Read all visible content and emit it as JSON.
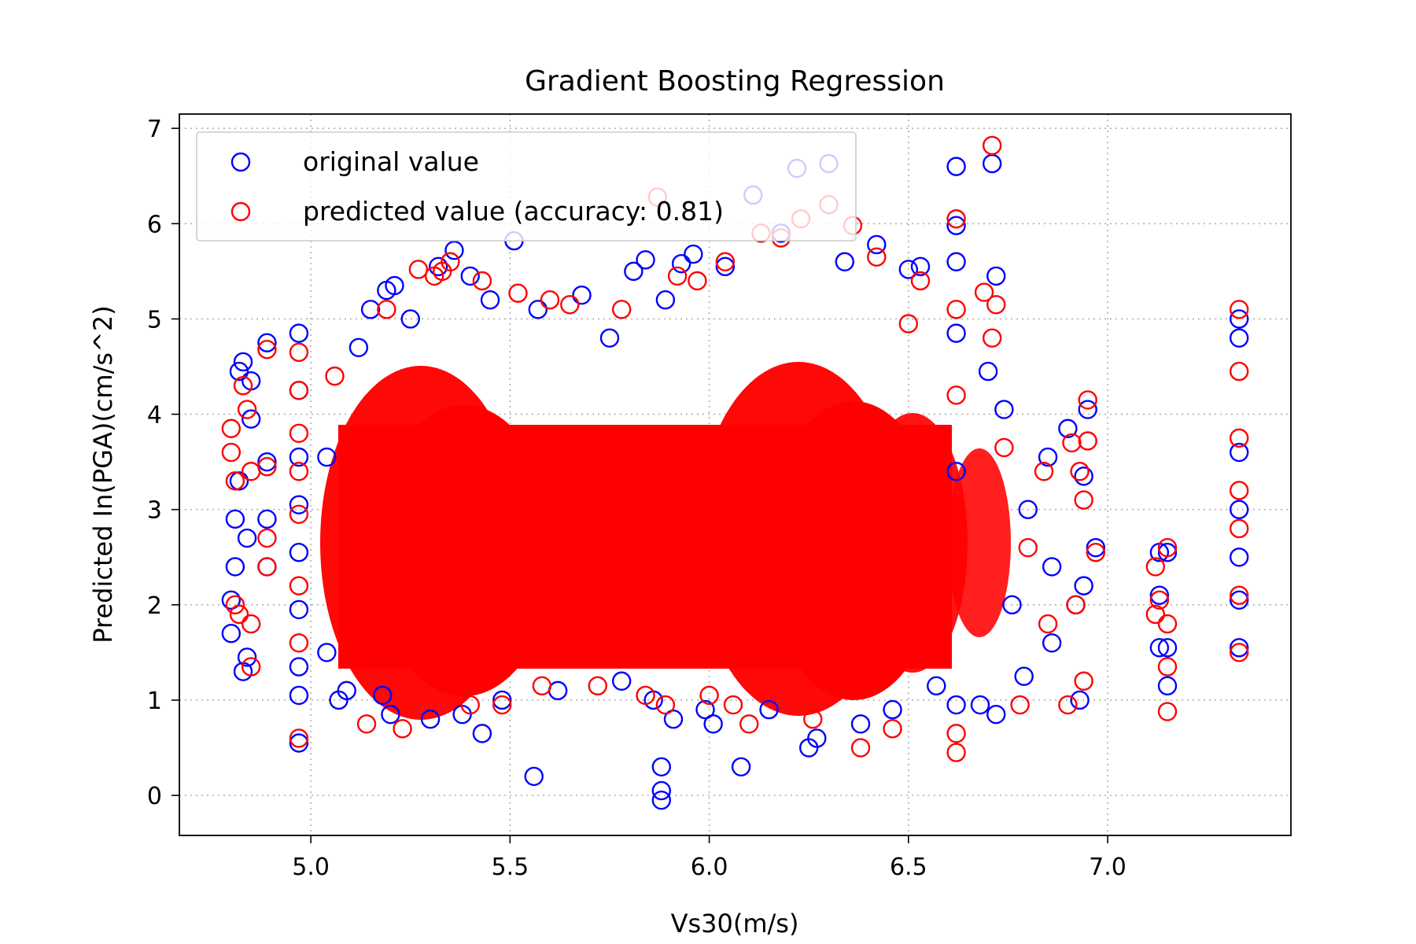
{
  "chart_data": {
    "type": "scatter",
    "title": "Gradient Boosting Regression",
    "xlabel": "Vs30(m/s)",
    "ylabel": "Predicted In(PGA)(cm/s^2)",
    "xlim": [
      4.67,
      7.46
    ],
    "ylim": [
      -0.42,
      7.15
    ],
    "x_ticks": [
      5.0,
      5.5,
      6.0,
      6.5,
      7.0
    ],
    "x_tick_labels": [
      "5.0",
      "5.5",
      "6.0",
      "6.5",
      "7.0"
    ],
    "y_ticks": [
      0,
      1,
      2,
      3,
      4,
      5,
      6,
      7
    ],
    "y_tick_labels": [
      "0",
      "1",
      "2",
      "3",
      "4",
      "5",
      "6",
      "7"
    ],
    "grid": true,
    "legend_position": "top-left",
    "series": [
      {
        "name": "original value",
        "color": "#0000ff",
        "marker": "open-circle",
        "points": [
          [
            4.8,
            1.7
          ],
          [
            4.8,
            2.05
          ],
          [
            4.81,
            2.4
          ],
          [
            4.81,
            2.9
          ],
          [
            4.82,
            3.3
          ],
          [
            4.82,
            4.45
          ],
          [
            4.83,
            4.55
          ],
          [
            4.83,
            1.3
          ],
          [
            4.84,
            1.45
          ],
          [
            4.84,
            2.7
          ],
          [
            4.85,
            3.95
          ],
          [
            4.85,
            4.35
          ],
          [
            4.89,
            4.75
          ],
          [
            4.89,
            3.5
          ],
          [
            4.89,
            2.9
          ],
          [
            4.89,
            2.4
          ],
          [
            4.97,
            0.55
          ],
          [
            4.97,
            1.05
          ],
          [
            4.97,
            1.35
          ],
          [
            4.97,
            1.95
          ],
          [
            4.97,
            2.55
          ],
          [
            4.97,
            3.05
          ],
          [
            4.97,
            3.55
          ],
          [
            4.97,
            4.25
          ],
          [
            4.97,
            4.85
          ],
          [
            5.04,
            1.5
          ],
          [
            5.04,
            3.55
          ],
          [
            5.07,
            1.0
          ],
          [
            5.09,
            1.1
          ],
          [
            5.12,
            4.7
          ],
          [
            5.15,
            5.1
          ],
          [
            5.18,
            1.05
          ],
          [
            5.19,
            5.3
          ],
          [
            5.2,
            0.85
          ],
          [
            5.21,
            5.35
          ],
          [
            5.25,
            5.0
          ],
          [
            5.3,
            0.8
          ],
          [
            5.32,
            5.55
          ],
          [
            5.36,
            5.72
          ],
          [
            5.38,
            0.85
          ],
          [
            5.4,
            5.45
          ],
          [
            5.43,
            0.65
          ],
          [
            5.45,
            5.2
          ],
          [
            5.48,
            1.0
          ],
          [
            5.51,
            5.82
          ],
          [
            5.56,
            0.2
          ],
          [
            5.57,
            5.1
          ],
          [
            5.62,
            1.1
          ],
          [
            5.68,
            5.25
          ],
          [
            5.75,
            4.8
          ],
          [
            5.78,
            1.2
          ],
          [
            5.81,
            5.5
          ],
          [
            5.84,
            5.62
          ],
          [
            5.86,
            1.0
          ],
          [
            5.88,
            0.05
          ],
          [
            5.88,
            0.3
          ],
          [
            5.88,
            -0.05
          ],
          [
            5.89,
            5.2
          ],
          [
            5.91,
            0.8
          ],
          [
            5.93,
            5.58
          ],
          [
            5.96,
            5.68
          ],
          [
            5.99,
            0.9
          ],
          [
            6.01,
            0.75
          ],
          [
            6.04,
            5.55
          ],
          [
            6.08,
            0.3
          ],
          [
            6.11,
            6.3
          ],
          [
            6.15,
            0.9
          ],
          [
            6.18,
            5.9
          ],
          [
            6.22,
            6.58
          ],
          [
            6.25,
            0.5
          ],
          [
            6.27,
            0.6
          ],
          [
            6.3,
            6.63
          ],
          [
            6.34,
            5.6
          ],
          [
            6.38,
            0.75
          ],
          [
            6.42,
            5.78
          ],
          [
            6.46,
            0.9
          ],
          [
            6.5,
            5.52
          ],
          [
            6.53,
            5.55
          ],
          [
            6.57,
            1.15
          ],
          [
            6.62,
            5.6
          ],
          [
            6.62,
            6.6
          ],
          [
            6.62,
            5.98
          ],
          [
            6.62,
            0.95
          ],
          [
            6.62,
            3.4
          ],
          [
            6.62,
            4.85
          ],
          [
            6.68,
            0.95
          ],
          [
            6.7,
            4.45
          ],
          [
            6.71,
            6.63
          ],
          [
            6.72,
            0.85
          ],
          [
            6.72,
            5.45
          ],
          [
            6.74,
            4.05
          ],
          [
            6.76,
            2.0
          ],
          [
            6.79,
            1.25
          ],
          [
            6.8,
            3.0
          ],
          [
            6.85,
            3.55
          ],
          [
            6.86,
            1.6
          ],
          [
            6.86,
            2.4
          ],
          [
            6.9,
            3.85
          ],
          [
            6.92,
            2.0
          ],
          [
            6.93,
            1.0
          ],
          [
            6.94,
            2.2
          ],
          [
            6.94,
            3.35
          ],
          [
            6.95,
            4.05
          ],
          [
            6.97,
            2.6
          ],
          [
            7.13,
            1.55
          ],
          [
            7.13,
            2.1
          ],
          [
            7.13,
            2.55
          ],
          [
            7.15,
            1.15
          ],
          [
            7.15,
            1.55
          ],
          [
            7.15,
            2.55
          ],
          [
            7.33,
            1.55
          ],
          [
            7.33,
            2.05
          ],
          [
            7.33,
            2.5
          ],
          [
            7.33,
            3.0
          ],
          [
            7.33,
            3.6
          ],
          [
            7.33,
            4.8
          ],
          [
            7.33,
            5.0
          ]
        ]
      },
      {
        "name": "predicted value (accuracy: 0.81)",
        "color": "#ff0000",
        "marker": "open-circle",
        "points": [
          [
            4.8,
            3.85
          ],
          [
            4.8,
            3.6
          ],
          [
            4.81,
            3.3
          ],
          [
            4.81,
            2.0
          ],
          [
            4.82,
            1.9
          ],
          [
            4.83,
            4.3
          ],
          [
            4.84,
            4.05
          ],
          [
            4.85,
            3.4
          ],
          [
            4.85,
            1.8
          ],
          [
            4.85,
            1.35
          ],
          [
            4.89,
            4.68
          ],
          [
            4.89,
            3.45
          ],
          [
            4.89,
            2.7
          ],
          [
            4.89,
            2.4
          ],
          [
            4.97,
            0.6
          ],
          [
            4.97,
            1.6
          ],
          [
            4.97,
            2.2
          ],
          [
            4.97,
            2.95
          ],
          [
            4.97,
            3.4
          ],
          [
            4.97,
            3.8
          ],
          [
            4.97,
            4.25
          ],
          [
            4.97,
            4.65
          ],
          [
            5.06,
            4.4
          ],
          [
            5.14,
            0.75
          ],
          [
            5.19,
            5.1
          ],
          [
            5.23,
            0.7
          ],
          [
            5.27,
            5.52
          ],
          [
            5.31,
            5.45
          ],
          [
            5.33,
            5.5
          ],
          [
            5.35,
            5.6
          ],
          [
            5.4,
            0.95
          ],
          [
            5.43,
            5.4
          ],
          [
            5.48,
            0.95
          ],
          [
            5.52,
            5.27
          ],
          [
            5.58,
            1.15
          ],
          [
            5.6,
            5.2
          ],
          [
            5.65,
            5.15
          ],
          [
            5.72,
            1.15
          ],
          [
            5.78,
            5.1
          ],
          [
            5.84,
            1.05
          ],
          [
            5.87,
            6.28
          ],
          [
            5.89,
            0.95
          ],
          [
            5.92,
            5.45
          ],
          [
            5.97,
            5.4
          ],
          [
            6.0,
            1.05
          ],
          [
            6.04,
            5.6
          ],
          [
            6.06,
            0.95
          ],
          [
            6.1,
            0.75
          ],
          [
            6.13,
            5.9
          ],
          [
            6.18,
            5.85
          ],
          [
            6.23,
            6.05
          ],
          [
            6.26,
            0.8
          ],
          [
            6.3,
            6.2
          ],
          [
            6.36,
            5.98
          ],
          [
            6.38,
            0.5
          ],
          [
            6.42,
            5.65
          ],
          [
            6.46,
            0.7
          ],
          [
            6.5,
            4.95
          ],
          [
            6.53,
            5.4
          ],
          [
            6.62,
            6.05
          ],
          [
            6.62,
            0.45
          ],
          [
            6.62,
            0.65
          ],
          [
            6.62,
            5.1
          ],
          [
            6.62,
            4.2
          ],
          [
            6.69,
            5.28
          ],
          [
            6.71,
            6.82
          ],
          [
            6.71,
            4.8
          ],
          [
            6.72,
            5.15
          ],
          [
            6.74,
            3.65
          ],
          [
            6.78,
            0.95
          ],
          [
            6.8,
            2.6
          ],
          [
            6.84,
            3.4
          ],
          [
            6.85,
            1.8
          ],
          [
            6.9,
            0.95
          ],
          [
            6.91,
            3.7
          ],
          [
            6.92,
            2.0
          ],
          [
            6.93,
            3.4
          ],
          [
            6.94,
            3.1
          ],
          [
            6.94,
            1.2
          ],
          [
            6.95,
            4.15
          ],
          [
            6.95,
            3.72
          ],
          [
            6.97,
            2.55
          ],
          [
            7.12,
            1.9
          ],
          [
            7.12,
            2.4
          ],
          [
            7.13,
            2.05
          ],
          [
            7.15,
            0.88
          ],
          [
            7.15,
            1.35
          ],
          [
            7.15,
            1.8
          ],
          [
            7.15,
            2.6
          ],
          [
            7.33,
            1.5
          ],
          [
            7.33,
            2.1
          ],
          [
            7.33,
            2.8
          ],
          [
            7.33,
            3.2
          ],
          [
            7.33,
            3.75
          ],
          [
            7.33,
            4.45
          ],
          [
            7.33,
            5.1
          ]
        ]
      }
    ]
  }
}
